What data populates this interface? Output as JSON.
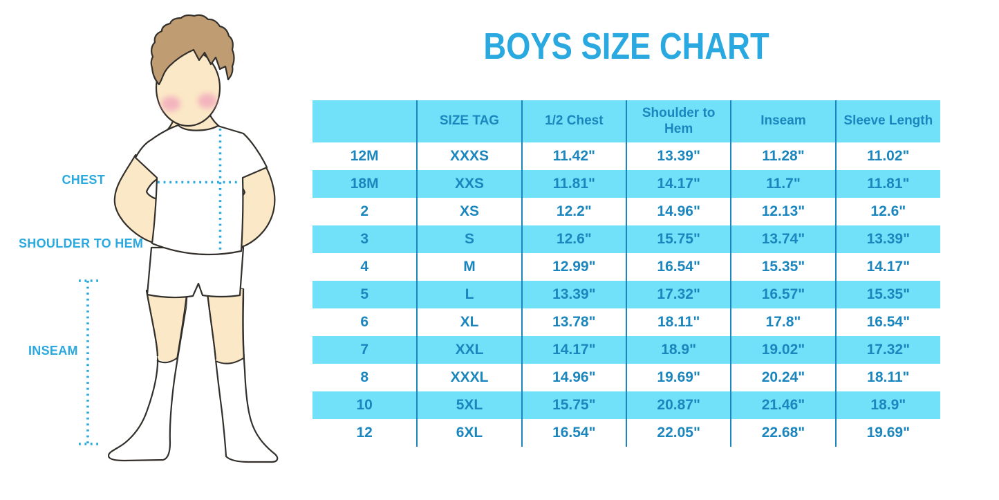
{
  "title": "BOYS SIZE CHART",
  "figure": {
    "description": "outline illustration of a boy in white t-shirt, shorts and knee socks with measurement guide lines",
    "labels": {
      "chest": "CHEST",
      "shoulder_to_hem": "SHOULDER TO HEM",
      "inseam": "INSEAM"
    }
  },
  "size_chart": {
    "columns": [
      "",
      "SIZE TAG",
      "1/2 Chest",
      "Shoulder to Hem",
      "Inseam",
      "Sleeve Length"
    ],
    "rows": [
      [
        "12M",
        "XXXS",
        "11.42\"",
        "13.39\"",
        "11.28\"",
        "11.02\""
      ],
      [
        "18M",
        "XXS",
        "11.81\"",
        "14.17\"",
        "11.7\"",
        "11.81\""
      ],
      [
        "2",
        "XS",
        "12.2\"",
        "14.96\"",
        "12.13\"",
        "12.6\""
      ],
      [
        "3",
        "S",
        "12.6\"",
        "15.75\"",
        "13.74\"",
        "13.39\""
      ],
      [
        "4",
        "M",
        "12.99\"",
        "16.54\"",
        "15.35\"",
        "14.17\""
      ],
      [
        "5",
        "L",
        "13.39\"",
        "17.32\"",
        "16.57\"",
        "15.35\""
      ],
      [
        "6",
        "XL",
        "13.78\"",
        "18.11\"",
        "17.8\"",
        "16.54\""
      ],
      [
        "7",
        "XXL",
        "14.17\"",
        "18.9\"",
        "19.02\"",
        "17.32\""
      ],
      [
        "8",
        "XXXL",
        "14.96\"",
        "19.69\"",
        "20.24\"",
        "18.11\""
      ],
      [
        "10",
        "5XL",
        "15.75\"",
        "20.87\"",
        "21.46\"",
        "18.9\""
      ],
      [
        "12",
        "6XL",
        "16.54\"",
        "22.05\"",
        "22.68\"",
        "19.69\""
      ]
    ]
  },
  "colors": {
    "accent_blue": "#29A9E0",
    "table_text_blue": "#1B86BE",
    "cell_cyan": "#70E1F8",
    "skin": "#FBE8C6",
    "hair": "#BF9C72",
    "blush": "#F2A8BC",
    "outline": "#33302C"
  }
}
